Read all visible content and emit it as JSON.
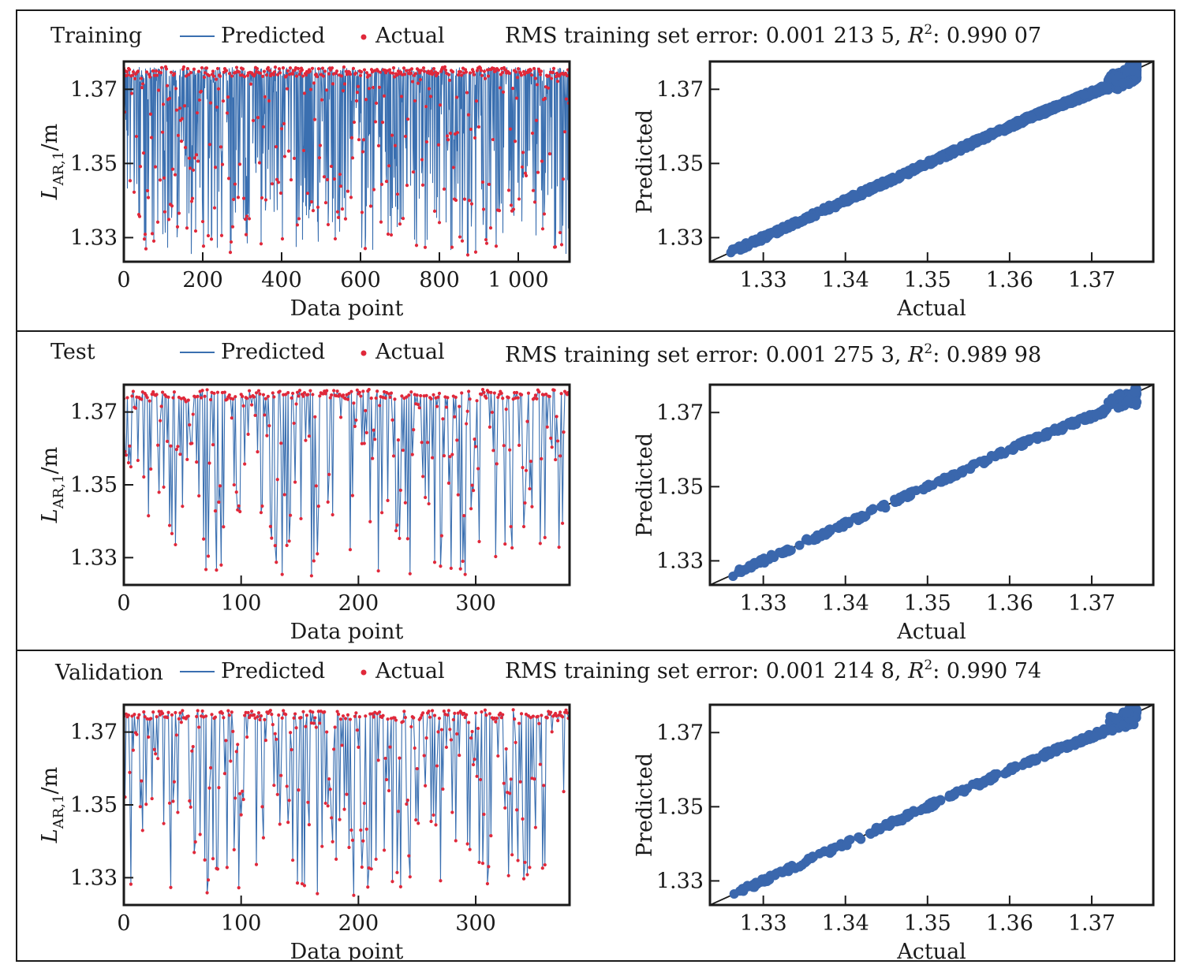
{
  "panels": [
    {
      "id": "training",
      "name": "Training",
      "legend": {
        "predicted": "Predicted",
        "actual": "Actual"
      },
      "stats": {
        "prefix": "RMS training set error: 0.001 213 5, ",
        "r2_symbol": "R",
        "r2_exp": "2",
        "r2_value": ": 0.990 07"
      },
      "left_chart": {
        "type": "line",
        "xlabel": "Data point",
        "ylabel": "L",
        "ylabel_sub": "AR,1",
        "ylabel_unit": "/m",
        "xlim": [
          0,
          1130
        ],
        "ylim": [
          1.3235,
          1.3775
        ],
        "xticks": [
          0,
          200,
          400,
          600,
          800,
          1000
        ],
        "xtick_labels": [
          "0",
          "200",
          "400",
          "600",
          "800",
          "1 000"
        ],
        "yticks": [
          1.33,
          1.35,
          1.37
        ],
        "ytick_labels": [
          "1.33",
          "1.35",
          "1.37"
        ],
        "n_points": 1130
      },
      "right_chart": {
        "type": "scatter",
        "xlabel": "Actual",
        "ylabel": "Predicted",
        "xlim": [
          1.3235,
          1.3775
        ],
        "ylim": [
          1.3235,
          1.3775
        ],
        "xticks": [
          1.33,
          1.34,
          1.35,
          1.36,
          1.37
        ],
        "xtick_labels": [
          "1.33",
          "1.34",
          "1.35",
          "1.36",
          "1.37"
        ],
        "yticks": [
          1.33,
          1.35,
          1.37
        ],
        "ytick_labels": [
          "1.33",
          "1.35",
          "1.37"
        ],
        "reference_line": "y = x"
      }
    },
    {
      "id": "test",
      "name": "Test",
      "legend": {
        "predicted": "Predicted",
        "actual": "Actual"
      },
      "stats": {
        "prefix": "RMS training set error: 0.001 275 3, ",
        "r2_symbol": "R",
        "r2_exp": "2",
        "r2_value": ": 0.989 98"
      },
      "left_chart": {
        "type": "line",
        "xlabel": "Data point",
        "ylabel": "L",
        "ylabel_sub": "AR,1",
        "ylabel_unit": "/m",
        "xlim": [
          0,
          380
        ],
        "ylim": [
          1.3225,
          1.3775
        ],
        "xticks": [
          0,
          100,
          200,
          300
        ],
        "xtick_labels": [
          "0",
          "100",
          "200",
          "300"
        ],
        "yticks": [
          1.33,
          1.35,
          1.37
        ],
        "ytick_labels": [
          "1.33",
          "1.35",
          "1.37"
        ],
        "n_points": 380
      },
      "right_chart": {
        "type": "scatter",
        "xlabel": "Actual",
        "ylabel": "Predicted",
        "xlim": [
          1.3235,
          1.3775
        ],
        "ylim": [
          1.3235,
          1.3775
        ],
        "xticks": [
          1.33,
          1.34,
          1.35,
          1.36,
          1.37
        ],
        "xtick_labels": [
          "1.33",
          "1.34",
          "1.35",
          "1.36",
          "1.37"
        ],
        "yticks": [
          1.33,
          1.35,
          1.37
        ],
        "ytick_labels": [
          "1.33",
          "1.35",
          "1.37"
        ],
        "reference_line": "y = x"
      }
    },
    {
      "id": "validation",
      "name": "Validation",
      "legend": {
        "predicted": "Predicted",
        "actual": "Actual"
      },
      "stats": {
        "prefix": "RMS training set error: 0.001 214 8, ",
        "r2_symbol": "R",
        "r2_exp": "2",
        "r2_value": ": 0.990 74"
      },
      "left_chart": {
        "type": "line",
        "xlabel": "Data point",
        "ylabel": "L",
        "ylabel_sub": "AR,1",
        "ylabel_unit": "/m",
        "xlim": [
          0,
          380
        ],
        "ylim": [
          1.3225,
          1.3775
        ],
        "xticks": [
          0,
          100,
          200,
          300
        ],
        "xtick_labels": [
          "0",
          "100",
          "200",
          "300"
        ],
        "yticks": [
          1.33,
          1.35,
          1.37
        ],
        "ytick_labels": [
          "1.33",
          "1.35",
          "1.37"
        ],
        "n_points": 380
      },
      "right_chart": {
        "type": "scatter",
        "xlabel": "Actual",
        "ylabel": "Predicted",
        "xlim": [
          1.3235,
          1.3775
        ],
        "ylim": [
          1.3235,
          1.3775
        ],
        "xticks": [
          1.33,
          1.34,
          1.35,
          1.36,
          1.37
        ],
        "xtick_labels": [
          "1.33",
          "1.34",
          "1.35",
          "1.36",
          "1.37"
        ],
        "yticks": [
          1.33,
          1.35,
          1.37
        ],
        "ytick_labels": [
          "1.33",
          "1.35",
          "1.37"
        ],
        "reference_line": "y = x"
      }
    }
  ],
  "colors": {
    "predicted": "#3a6fb0",
    "actual": "#e0283a",
    "scatter": "#3a67ad",
    "axis": "#1a1a1a"
  },
  "chart_data": [
    {
      "type": "line",
      "title": "Training",
      "xlabel": "Data point",
      "ylabel": "LAR,1/m",
      "xlim": [
        0,
        1130
      ],
      "ylim": [
        1.3235,
        1.3775
      ],
      "series": [
        {
          "name": "Predicted"
        },
        {
          "name": "Actual"
        }
      ],
      "note_values": "values range ~1.325–1.376, concentrated near 1.374"
    },
    {
      "type": "scatter",
      "title": "Training",
      "xlabel": "Actual",
      "ylabel": "Predicted",
      "xlim": [
        1.3235,
        1.3775
      ],
      "ylim": [
        1.3235,
        1.3775
      ],
      "rms": "0.001 213 5",
      "r2": "0.990 07"
    },
    {
      "type": "line",
      "title": "Test",
      "xlabel": "Data point",
      "ylabel": "LAR,1/m",
      "xlim": [
        0,
        380
      ],
      "ylim": [
        1.3225,
        1.3775
      ],
      "series": [
        {
          "name": "Predicted"
        },
        {
          "name": "Actual"
        }
      ]
    },
    {
      "type": "scatter",
      "title": "Test",
      "xlabel": "Actual",
      "ylabel": "Predicted",
      "xlim": [
        1.3235,
        1.3775
      ],
      "ylim": [
        1.3235,
        1.3775
      ],
      "rms": "0.001 275 3",
      "r2": "0.989 98"
    },
    {
      "type": "line",
      "title": "Validation",
      "xlabel": "Data point",
      "ylabel": "LAR,1/m",
      "xlim": [
        0,
        380
      ],
      "ylim": [
        1.3225,
        1.3775
      ],
      "series": [
        {
          "name": "Predicted"
        },
        {
          "name": "Actual"
        }
      ]
    },
    {
      "type": "scatter",
      "title": "Validation",
      "xlabel": "Actual",
      "ylabel": "Predicted",
      "xlim": [
        1.3235,
        1.3775
      ],
      "ylim": [
        1.3235,
        1.3775
      ],
      "rms": "0.001 214 8",
      "r2": "0.990 74"
    }
  ]
}
